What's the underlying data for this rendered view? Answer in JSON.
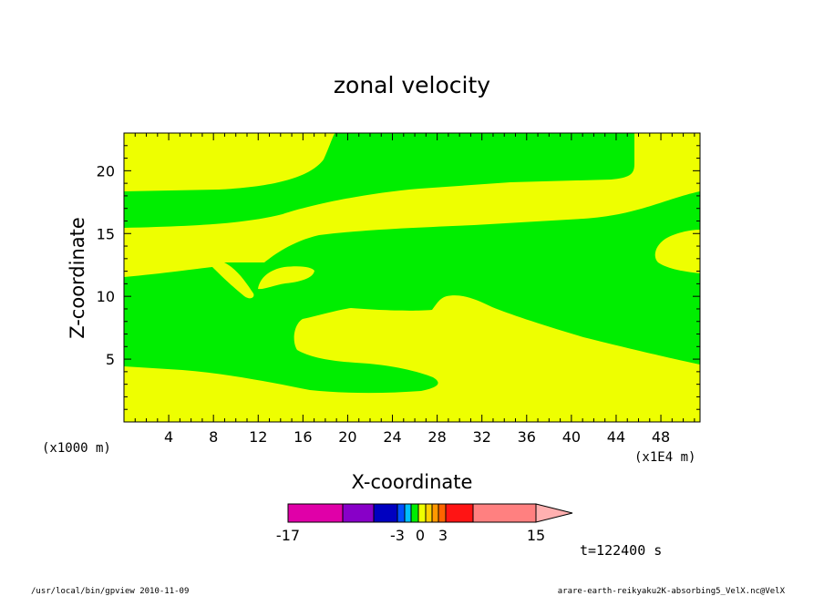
{
  "chart_data": {
    "type": "contour",
    "title": "zonal velocity",
    "xlabel": "X-coordinate",
    "ylabel": "Z-coordinate",
    "x_unit_note": "(x1E4 m)",
    "y_unit_note": "(x1000 m)",
    "x_ticks": [
      4,
      8,
      12,
      16,
      20,
      24,
      28,
      32,
      36,
      40,
      44,
      48
    ],
    "y_ticks": [
      5,
      10,
      15,
      20
    ],
    "xlim": [
      0,
      51.5
    ],
    "ylim": [
      0,
      23
    ],
    "fill_colors": {
      "low": "#00ee00",
      "high": "#eeff00"
    },
    "colorbar": {
      "labels": [
        "-17",
        "-3",
        "0",
        "3",
        "15"
      ],
      "bin_colors": [
        "#e000a8",
        "#8800c8",
        "#0000c0",
        "#0050ff",
        "#00c0ff",
        "#00ee00",
        "#eeff00",
        "#ffd000",
        "#ff9800",
        "#ff6400",
        "#ff1414",
        "#ff8080",
        "#ffb0b0"
      ]
    },
    "time_label": "t=122400 s"
  },
  "footer": {
    "left": "/usr/local/bin/gpview   2010-11-09",
    "right": "arare-earth-reikyaku2K-absorbing5_VelX.nc@VelX"
  }
}
